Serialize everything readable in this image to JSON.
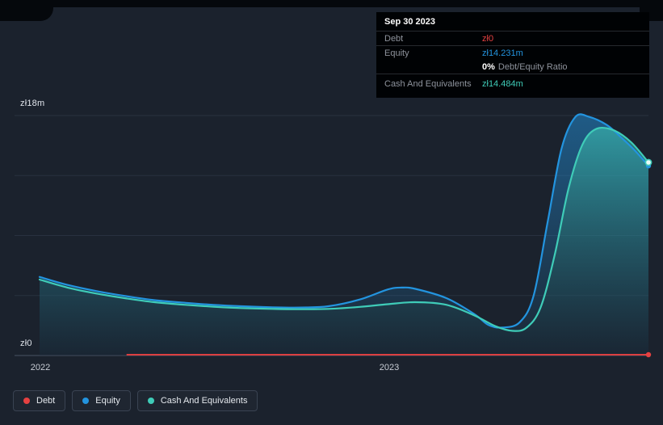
{
  "colors": {
    "background": "#1b222d",
    "debt": "#e64141",
    "equity": "#2394df",
    "cash": "#3fccb8",
    "white": "#ffffff"
  },
  "axis": {
    "y_top": "zł18m",
    "y_bottom": "zł0",
    "x_left": "2022",
    "x_mid": "2023"
  },
  "tooltip": {
    "date": "Sep 30 2023",
    "debt_label": "Debt",
    "debt_value": "zł0",
    "equity_label": "Equity",
    "equity_value": "zł14.231m",
    "ratio_value": "0%",
    "ratio_label": "Debt/Equity Ratio",
    "cash_label": "Cash And Equivalents",
    "cash_value": "zł14.484m"
  },
  "legend": {
    "items": [
      {
        "label": "Debt",
        "dot_color": "#e64141"
      },
      {
        "label": "Equity",
        "dot_color": "#2394df"
      },
      {
        "label": "Cash And Equivalents",
        "dot_color": "#3fccb8"
      }
    ]
  },
  "chart_data": {
    "type": "area",
    "title": "Debt to Equity History",
    "unit": "PLN (zł) millions",
    "grid": true,
    "legend_position": "bottom-left",
    "xlim": [
      2022.0,
      2023.75
    ],
    "ylim_m": [
      0,
      18
    ],
    "y_gridlines_m": [
      0,
      4.5,
      9,
      13.5,
      18
    ],
    "x_tick_labels": [
      "2022",
      "2023"
    ],
    "x_tick_positions": [
      2022.0,
      2023.0
    ],
    "y_axis_top_label": "zł18m",
    "y_axis_bottom_label": "zł0",
    "highlight_date": "Sep 30 2023",
    "series": [
      {
        "name": "Debt",
        "color": "#e64141",
        "latest_label": "zł0",
        "x": [
          2022.25,
          2023.75
        ],
        "values_m": [
          0,
          0
        ]
      },
      {
        "name": "Equity",
        "color": "#2394df",
        "latest_label": "zł14.231m",
        "x": [
          2022.0,
          2022.08,
          2022.17,
          2022.25,
          2022.33,
          2022.42,
          2022.5,
          2022.58,
          2022.67,
          2022.75,
          2022.83,
          2022.92,
          2023.0,
          2023.04,
          2023.08,
          2023.17,
          2023.25,
          2023.29,
          2023.33,
          2023.38,
          2023.42,
          2023.46,
          2023.5,
          2023.54,
          2023.58,
          2023.63,
          2023.67,
          2023.71,
          2023.75
        ],
        "values_m": [
          5.9,
          5.3,
          4.8,
          4.45,
          4.15,
          3.95,
          3.8,
          3.7,
          3.62,
          3.6,
          3.7,
          4.2,
          4.95,
          5.1,
          5.0,
          4.3,
          3.1,
          2.3,
          2.1,
          2.5,
          4.5,
          10.0,
          15.5,
          17.9,
          17.9,
          17.3,
          16.4,
          15.4,
          14.231
        ]
      },
      {
        "name": "Cash And Equivalents",
        "color": "#3fccb8",
        "latest_label": "zł14.484m",
        "x": [
          2022.0,
          2022.08,
          2022.17,
          2022.25,
          2022.33,
          2022.42,
          2022.5,
          2022.58,
          2022.67,
          2022.75,
          2022.83,
          2022.92,
          2023.0,
          2023.08,
          2023.17,
          2023.25,
          2023.31,
          2023.36,
          2023.4,
          2023.44,
          2023.48,
          2023.52,
          2023.56,
          2023.6,
          2023.65,
          2023.7,
          2023.75
        ],
        "values_m": [
          5.7,
          5.1,
          4.62,
          4.28,
          4.0,
          3.8,
          3.66,
          3.56,
          3.5,
          3.47,
          3.5,
          3.65,
          3.85,
          4.0,
          3.8,
          3.0,
          2.2,
          1.85,
          2.1,
          3.6,
          7.5,
          12.5,
          15.8,
          17.0,
          16.9,
          16.0,
          14.484
        ]
      }
    ]
  }
}
